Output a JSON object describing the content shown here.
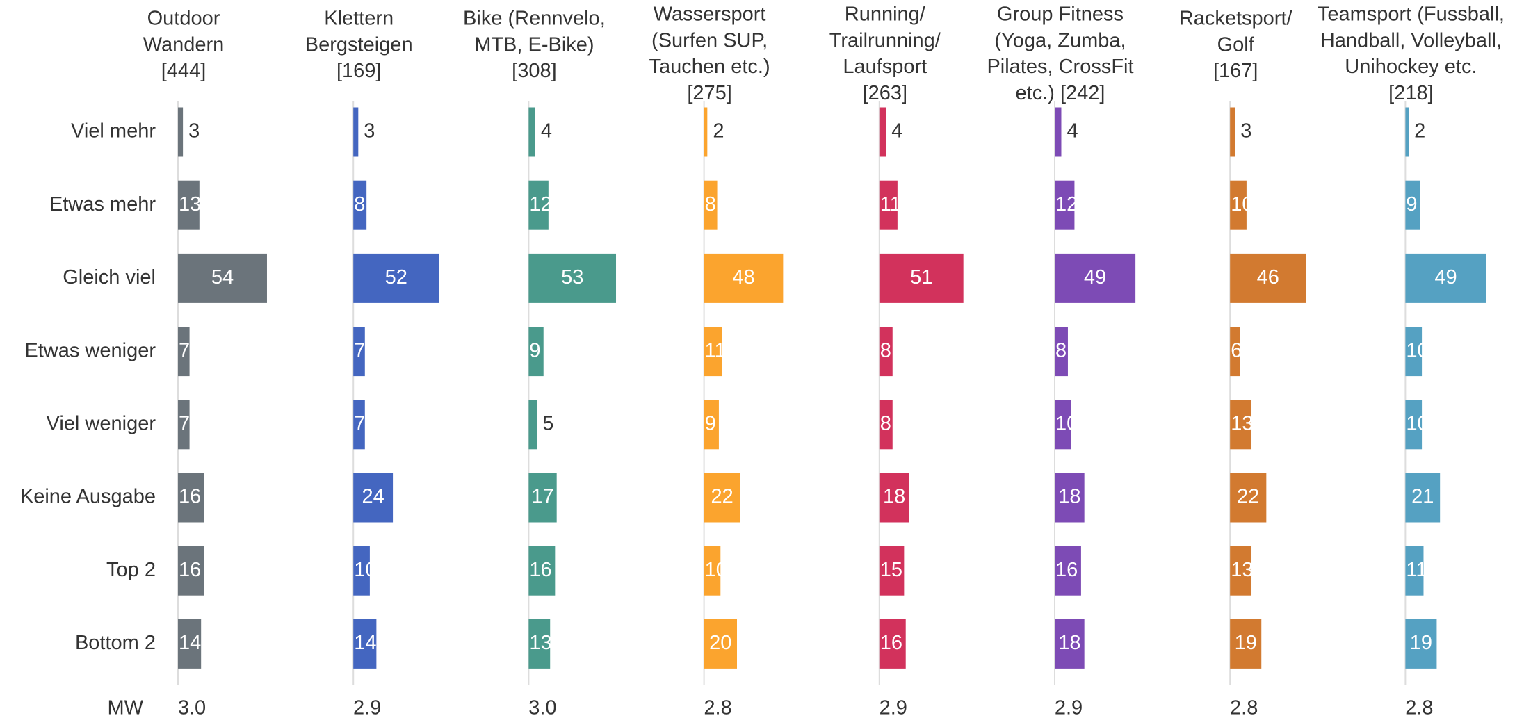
{
  "chart_data": {
    "type": "bar",
    "orientation": "horizontal",
    "categories": [
      "Viel mehr",
      "Etwas mehr",
      "Gleich viel",
      "Etwas weniger",
      "Viel weniger",
      "Keine Ausgabe",
      "Top 2",
      "Bottom 2"
    ],
    "xlim": [
      0,
      100
    ],
    "mean_label": "MW",
    "series": [
      {
        "name_lines": [
          "Outdoor",
          "Wandern",
          "[444]"
        ],
        "color": "#6b747b",
        "values": [
          3,
          13,
          54,
          7,
          7,
          16,
          16,
          14
        ],
        "mean": "3.0"
      },
      {
        "name_lines": [
          "Klettern",
          "Bergsteigen",
          "[169]"
        ],
        "color": "#4466c0",
        "values": [
          3,
          8,
          52,
          7,
          7,
          24,
          10,
          14
        ],
        "mean": "2.9"
      },
      {
        "name_lines": [
          "Bike (Rennvelo,",
          "MTB, E-Bike)",
          "[308]"
        ],
        "color": "#4a9a8c",
        "values": [
          4,
          12,
          53,
          9,
          5,
          17,
          16,
          13
        ],
        "mean": "3.0"
      },
      {
        "name_lines": [
          "Wassersport",
          "(Surfen SUP,",
          "Tauchen etc.)",
          "[275]"
        ],
        "color": "#fba42e",
        "values": [
          2,
          8,
          48,
          11,
          9,
          22,
          10,
          20
        ],
        "mean": "2.8"
      },
      {
        "name_lines": [
          "Running/",
          "Trailrunning/",
          "Laufsport",
          "[263]"
        ],
        "color": "#d2325c",
        "values": [
          4,
          11,
          51,
          8,
          8,
          18,
          15,
          16
        ],
        "mean": "2.9"
      },
      {
        "name_lines": [
          "Group Fitness",
          "(Yoga, Zumba,",
          "Pilates, CrossFit",
          "etc.) [242]"
        ],
        "color": "#7d4bb5",
        "values": [
          4,
          12,
          49,
          8,
          10,
          18,
          16,
          18
        ],
        "mean": "2.9"
      },
      {
        "name_lines": [
          "Racketsport/",
          "Golf",
          "[167]"
        ],
        "color": "#d27a30",
        "values": [
          3,
          10,
          46,
          6,
          13,
          22,
          13,
          19
        ],
        "mean": "2.8"
      },
      {
        "name_lines": [
          "Teamsport (Fussball,",
          "Handball, Volleyball,",
          "Unihockey etc.",
          "[218]"
        ],
        "color": "#55a1c2",
        "values": [
          2,
          9,
          49,
          10,
          10,
          21,
          11,
          19
        ],
        "mean": "2.8"
      }
    ]
  }
}
